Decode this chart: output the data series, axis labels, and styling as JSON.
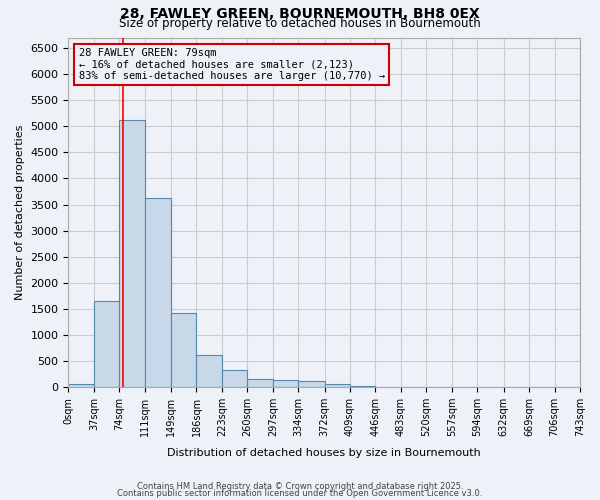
{
  "title1": "28, FAWLEY GREEN, BOURNEMOUTH, BH8 0EX",
  "title2": "Size of property relative to detached houses in Bournemouth",
  "xlabel": "Distribution of detached houses by size in Bournemouth",
  "ylabel": "Number of detached properties",
  "bar_edges": [
    0,
    37,
    74,
    111,
    149,
    186,
    223,
    260,
    297,
    334,
    372,
    409,
    446,
    483,
    520,
    557,
    594,
    632,
    669,
    706,
    743
  ],
  "bar_heights": [
    60,
    1650,
    5120,
    3620,
    1420,
    610,
    320,
    160,
    130,
    110,
    55,
    15,
    10,
    5,
    3,
    2,
    1,
    1,
    0,
    0
  ],
  "bar_color": "#c8d8e8",
  "bar_edge_color": "#5588aa",
  "bar_linewidth": 0.8,
  "grid_color": "#cccccc",
  "background_color": "#eef2f8",
  "red_line_x": 79,
  "annotation_title": "28 FAWLEY GREEN: 79sqm",
  "annotation_line1": "← 16% of detached houses are smaller (2,123)",
  "annotation_line2": "83% of semi-detached houses are larger (10,770) →",
  "annotation_box_color": "#cc0000",
  "ylim": [
    0,
    6700
  ],
  "yticks": [
    0,
    500,
    1000,
    1500,
    2000,
    2500,
    3000,
    3500,
    4000,
    4500,
    5000,
    5500,
    6000,
    6500
  ],
  "tick_labels": [
    "0sqm",
    "37sqm",
    "74sqm",
    "111sqm",
    "149sqm",
    "186sqm",
    "223sqm",
    "260sqm",
    "297sqm",
    "334sqm",
    "372sqm",
    "409sqm",
    "446sqm",
    "483sqm",
    "520sqm",
    "557sqm",
    "594sqm",
    "632sqm",
    "669sqm",
    "706sqm",
    "743sqm"
  ],
  "footnote1": "Contains HM Land Registry data © Crown copyright and database right 2025.",
  "footnote2": "Contains public sector information licensed under the Open Government Licence v3.0."
}
